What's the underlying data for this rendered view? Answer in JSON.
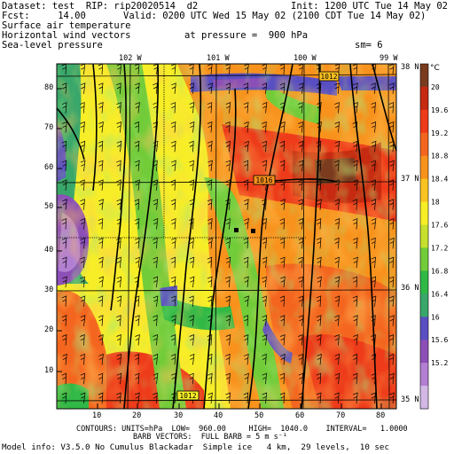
{
  "header": {
    "dataset_label": "Dataset: test  RIP: rip20020514  d2",
    "init_label": "Init: 1200 UTC Tue 14 May 02",
    "fcst_label": "Fcst:     14.00",
    "valid_label": "Valid: 0200 UTC Wed 15 May 02 (2100 CDT Tue 14 May 02)",
    "field_1": "Surface air temperature",
    "field_2": "Horizontal wind vectors",
    "pressure_label": "at pressure =  900 hPa",
    "field_3": "Sea-level pressure",
    "smoothing_label": "sm= 6"
  },
  "axes": {
    "top_ticks": [
      "102 W",
      "101 W",
      "100 W",
      "99 W"
    ],
    "right_ticks": [
      "38 N",
      "37 N",
      "36 N",
      "35 N"
    ],
    "left_ticks": [
      "80",
      "70",
      "60",
      "50",
      "40",
      "30",
      "20",
      "10"
    ],
    "bottom_ticks": [
      "10",
      "20",
      "30",
      "40",
      "50",
      "60",
      "70",
      "80"
    ]
  },
  "contour_labels": [
    "1012",
    "1016",
    "1012"
  ],
  "legend": {
    "unit": "°C",
    "values": [
      "20",
      "19.6",
      "19.2",
      "18.8",
      "18.4",
      "18",
      "17.6",
      "17.2",
      "16.8",
      "16.4",
      "16",
      "15.6",
      "15.2"
    ],
    "colors": [
      "#7a3b1f",
      "#c62a10",
      "#ee3b1a",
      "#f4661f",
      "#f8921c",
      "#fbc321",
      "#f7ee27",
      "#c7e02e",
      "#72cc3a",
      "#2fb846",
      "#3aa76a",
      "#5a4fc2",
      "#8c4fb7",
      "#b27fd3",
      "#d3b8e6"
    ]
  },
  "footer": {
    "contours_line": "CONTOURS: UNITS=hPa  LOW=  960.00     HIGH=  1040.0    INTERVAL=   1.0000",
    "barbs_line": "BARB VECTORS:  FULL BARB = 5 m s⁻¹",
    "model_line": "Model info: V3.5.0 No Cumulus Blackadar  Simple ice   4 km,  29 levels,  10 sec"
  }
}
